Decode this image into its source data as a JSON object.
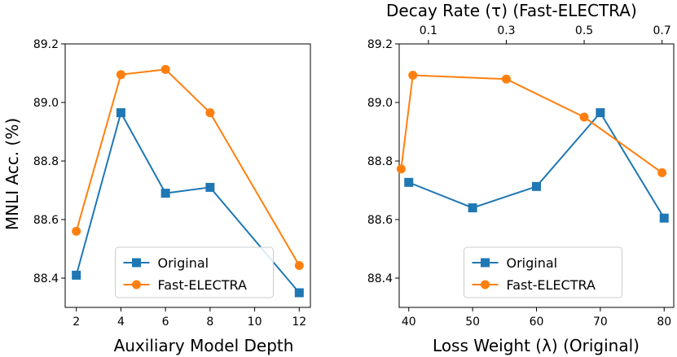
{
  "colors": {
    "original": "#1f77b4",
    "fast": "#ff7f0e"
  },
  "chart_data": [
    {
      "type": "line",
      "xlabel": "Auxiliary Model Depth",
      "ylabel": "MNLI Acc. (%)",
      "xlim": [
        1.5,
        12.5
      ],
      "ylim": [
        88.3,
        89.2
      ],
      "xticks": [
        2,
        4,
        6,
        8,
        10,
        12
      ],
      "yticks": [
        88.4,
        88.6,
        88.8,
        89.0,
        89.2
      ],
      "ytick_labels": [
        "88.4",
        "88.6",
        "88.8",
        "89.0",
        "89.2"
      ],
      "legend": {
        "position": "lower-center",
        "entries": [
          "Original",
          "Fast-ELECTRA"
        ]
      },
      "series": [
        {
          "name": "Original",
          "marker": "square",
          "x": [
            2,
            4,
            6,
            8,
            12
          ],
          "y": [
            88.41,
            88.965,
            88.69,
            88.71,
            88.35
          ]
        },
        {
          "name": "Fast-ELECTRA",
          "marker": "circle",
          "x": [
            2,
            4,
            6,
            8,
            12
          ],
          "y": [
            88.56,
            89.095,
            89.113,
            88.965,
            88.443
          ]
        }
      ]
    },
    {
      "type": "line",
      "xlabel": "Loss Weight (λ) (Original)",
      "top_xlabel": "Decay Rate (τ) (Fast-ELECTRA)",
      "xlim": [
        38.5,
        81.5
      ],
      "ylim": [
        88.3,
        89.2
      ],
      "xticks": [
        40,
        50,
        60,
        70,
        80
      ],
      "top_xlim": [
        0.025,
        0.73
      ],
      "top_xticks": [
        0.1,
        0.3,
        0.5,
        0.7
      ],
      "top_xtick_labels": [
        "0.1",
        "0.3",
        "0.5",
        "0.7"
      ],
      "yticks": [
        88.4,
        88.6,
        88.8,
        89.0,
        89.2
      ],
      "ytick_labels": [
        "88.4",
        "88.6",
        "88.8",
        "89.0",
        "89.2"
      ],
      "legend": {
        "position": "lower-center",
        "entries": [
          "Original",
          "Fast-ELECTRA"
        ]
      },
      "series": [
        {
          "name": "Original",
          "marker": "square",
          "axis": "bottom",
          "x": [
            40,
            50,
            60,
            70,
            80
          ],
          "y": [
            88.727,
            88.64,
            88.713,
            88.965,
            88.605
          ]
        },
        {
          "name": "Fast-ELECTRA",
          "marker": "circle",
          "axis": "top",
          "x": [
            0.03,
            0.06,
            0.3,
            0.5,
            0.7
          ],
          "y": [
            88.773,
            89.093,
            89.08,
            88.95,
            88.76
          ]
        }
      ]
    }
  ]
}
